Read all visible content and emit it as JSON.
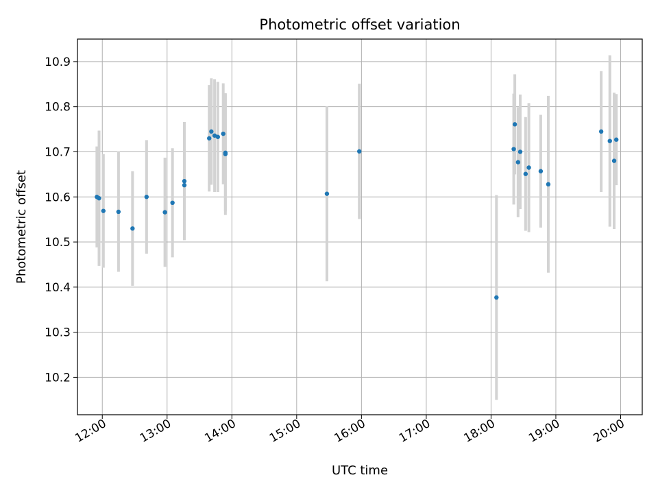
{
  "chart_data": {
    "type": "scatter",
    "title": "Photometric offset variation",
    "xlabel": "UTC time",
    "ylabel": "Photometric offset",
    "xlim": [
      "11:37",
      "20:20"
    ],
    "ylim": [
      10.117,
      10.95
    ],
    "x_ticks": [
      "12:00",
      "13:00",
      "14:00",
      "15:00",
      "16:00",
      "17:00",
      "18:00",
      "19:00",
      "20:00"
    ],
    "y_ticks": [
      "10.2",
      "10.3",
      "10.4",
      "10.5",
      "10.6",
      "10.7",
      "10.8",
      "10.9"
    ],
    "grid": true,
    "marker_color": "#1f77b4",
    "errorbar_color": "#d3d3d3",
    "points": [
      {
        "x": "11:55",
        "y": 10.6,
        "err": 0.112
      },
      {
        "x": "11:57",
        "y": 10.597,
        "err": 0.15
      },
      {
        "x": "12:01",
        "y": 10.569,
        "err": 0.126
      },
      {
        "x": "12:15",
        "y": 10.567,
        "err": 0.133
      },
      {
        "x": "12:28",
        "y": 10.53,
        "err": 0.127
      },
      {
        "x": "12:41",
        "y": 10.6,
        "err": 0.126
      },
      {
        "x": "12:58",
        "y": 10.566,
        "err": 0.121
      },
      {
        "x": "13:05",
        "y": 10.587,
        "err": 0.121
      },
      {
        "x": "13:16",
        "y": 10.626,
        "err": 0.08
      },
      {
        "x": "13:16",
        "y": 10.635,
        "err": 0.131
      },
      {
        "x": "13:39",
        "y": 10.73,
        "err": 0.118
      },
      {
        "x": "13:41",
        "y": 10.745,
        "err": 0.118
      },
      {
        "x": "13:44",
        "y": 10.736,
        "err": 0.125
      },
      {
        "x": "13:47",
        "y": 10.733,
        "err": 0.122
      },
      {
        "x": "13:52",
        "y": 10.74,
        "err": 0.112
      },
      {
        "x": "13:54",
        "y": 10.695,
        "err": 0.135
      },
      {
        "x": "13:54",
        "y": 10.698,
        "err": 0.13
      },
      {
        "x": "15:28",
        "y": 10.607,
        "err": 0.194
      },
      {
        "x": "15:58",
        "y": 10.701,
        "err": 0.15
      },
      {
        "x": "18:05",
        "y": 10.377,
        "err": 0.227
      },
      {
        "x": "18:21",
        "y": 10.706,
        "err": 0.123
      },
      {
        "x": "18:22",
        "y": 10.761,
        "err": 0.111
      },
      {
        "x": "18:25",
        "y": 10.677,
        "err": 0.122
      },
      {
        "x": "18:27",
        "y": 10.7,
        "err": 0.127
      },
      {
        "x": "18:32",
        "y": 10.651,
        "err": 0.126
      },
      {
        "x": "18:35",
        "y": 10.665,
        "err": 0.143
      },
      {
        "x": "18:46",
        "y": 10.657,
        "err": 0.125
      },
      {
        "x": "18:53",
        "y": 10.628,
        "err": 0.196
      },
      {
        "x": "19:42",
        "y": 10.745,
        "err": 0.134
      },
      {
        "x": "19:50",
        "y": 10.724,
        "err": 0.19
      },
      {
        "x": "19:54",
        "y": 10.68,
        "err": 0.151
      },
      {
        "x": "19:56",
        "y": 10.727,
        "err": 0.101
      }
    ]
  }
}
